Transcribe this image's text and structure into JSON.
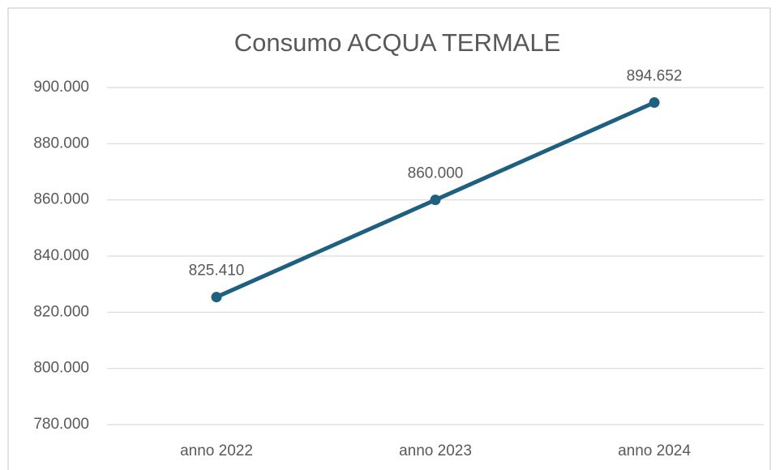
{
  "chart_data": {
    "type": "line",
    "title": "Consumo ACQUA TERMALE",
    "categories": [
      "anno 2022",
      "anno 2023",
      "anno 2024"
    ],
    "values": [
      825410,
      860000,
      894652
    ],
    "value_labels": [
      "825.410",
      "860.000",
      "894.652"
    ],
    "color": "#1f5f80",
    "ylim": [
      780000,
      900000
    ],
    "yticks": [
      {
        "value": 780000,
        "label": "780.000"
      },
      {
        "value": 800000,
        "label": "800.000"
      },
      {
        "value": 820000,
        "label": "820.000"
      },
      {
        "value": 840000,
        "label": "840.000"
      },
      {
        "value": 860000,
        "label": "860.000"
      },
      {
        "value": 880000,
        "label": "880.000"
      },
      {
        "value": 900000,
        "label": "900.000"
      }
    ],
    "grid": true
  }
}
